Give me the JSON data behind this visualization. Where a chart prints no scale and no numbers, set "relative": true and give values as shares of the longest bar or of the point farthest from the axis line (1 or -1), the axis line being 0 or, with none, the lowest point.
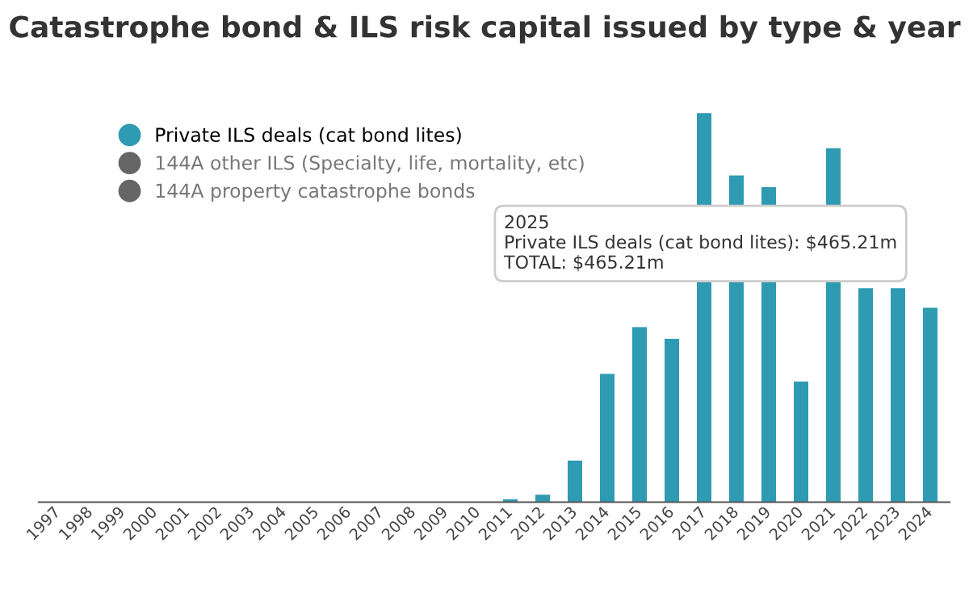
{
  "chart_data": {
    "type": "bar",
    "title": "Catastrophe bond & ILS risk capital issued by type & year",
    "categories": [
      "1997",
      "1998",
      "1999",
      "2000",
      "2001",
      "2002",
      "2003",
      "2004",
      "2005",
      "2006",
      "2007",
      "2008",
      "2009",
      "2010",
      "2011",
      "2012",
      "2013",
      "2014",
      "2015",
      "2016",
      "2017",
      "2018",
      "2019",
      "2020",
      "2021",
      "2022",
      "2023",
      "2024"
    ],
    "series": [
      {
        "name": "Private ILS deals (cat bond lites)",
        "color": "#2f9bb3",
        "values": [
          null,
          null,
          null,
          null,
          null,
          null,
          null,
          null,
          null,
          null,
          null,
          null,
          null,
          null,
          0.007,
          0.019,
          0.107,
          0.33,
          0.45,
          0.42,
          1.0,
          0.84,
          0.81,
          0.31,
          0.91,
          0.55,
          0.55,
          0.5
        ]
      }
    ],
    "relative": true,
    "legend": "top left",
    "annotations": [
      "2025\nPrivate ILS deals (cat bond lites): $465.21m\nTOTAL: $465.21m",
      "144A other ILS (Specialty, life, mortality, etc)",
      "144A property catastrophe bonds"
    ]
  }
}
